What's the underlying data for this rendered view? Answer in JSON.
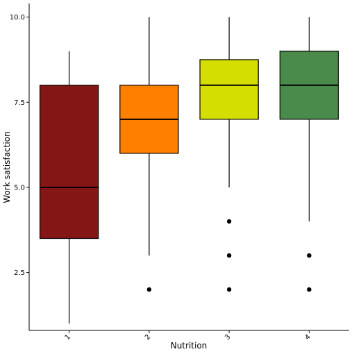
{
  "chart_data": {
    "type": "box",
    "xlabel": "Nutrition",
    "ylabel": "Work satisfaction",
    "ylim": [
      0.8,
      10.4
    ],
    "yticks": [
      2.5,
      5.0,
      7.5,
      10.0
    ],
    "ytick_labels": [
      "2.5",
      "5.0",
      "7.5",
      "10.0"
    ],
    "categories": [
      "1",
      "2",
      "3",
      "4"
    ],
    "grid": false,
    "legend": "none",
    "boxes": [
      {
        "category": "1",
        "whisker_low": 1,
        "q1": 3.5,
        "median": 5,
        "q3": 8,
        "whisker_high": 9,
        "outliers": [],
        "color": "#841616"
      },
      {
        "category": "2",
        "whisker_low": 3,
        "q1": 6,
        "median": 7,
        "q3": 8,
        "whisker_high": 10,
        "outliers": [
          2
        ],
        "color": "#ff7f00"
      },
      {
        "category": "3",
        "whisker_low": 5,
        "q1": 7,
        "median": 8,
        "q3": 8.75,
        "whisker_high": 10,
        "outliers": [
          2,
          3,
          4
        ],
        "color": "#d4de00"
      },
      {
        "category": "4",
        "whisker_low": 4,
        "q1": 7,
        "median": 8,
        "q3": 9,
        "whisker_high": 10,
        "outliers": [
          2,
          3
        ],
        "color": "#4a8a4a"
      }
    ]
  }
}
